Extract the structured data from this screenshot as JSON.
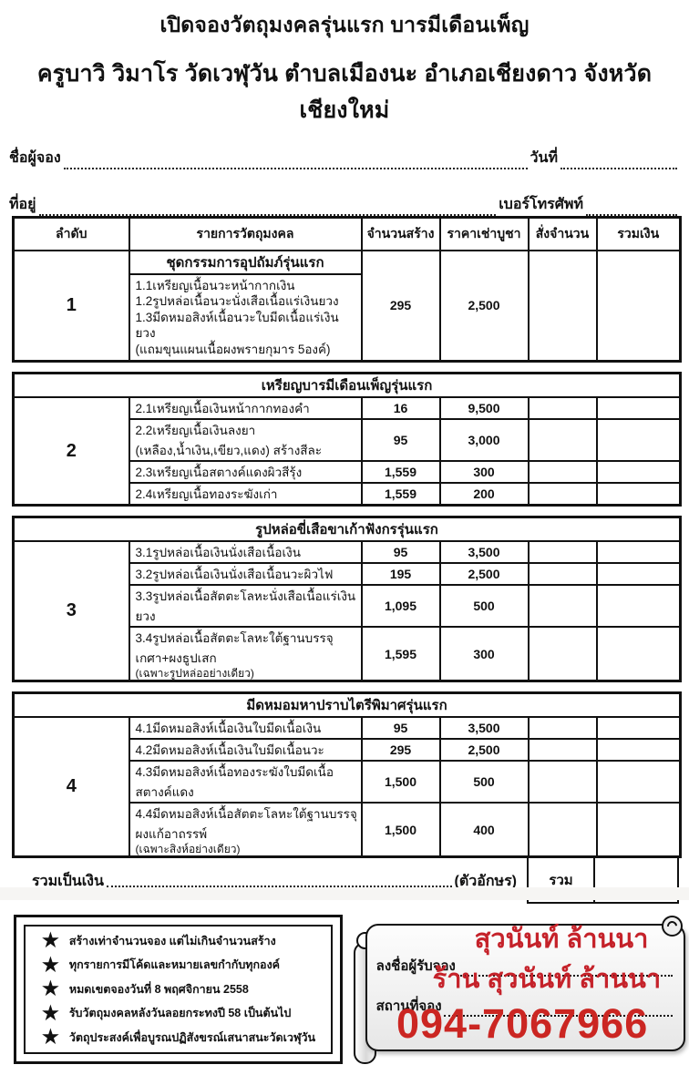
{
  "page": {
    "title": "เปิดจองวัตถุมงคลรุ่นแรก บารมีเดือนเพ็ญ",
    "subtitle": "ครูบาวิ วิมาโร วัดเวฬุวัน ตำบลเมืองนะ อำเภอเชียงดาว จังหวัดเชียงใหม่"
  },
  "form_fields": {
    "name_label": "ชื่อผู้จอง",
    "name_value": "",
    "date_label": "วันที่",
    "date_value": "",
    "address_label": "ที่อยู่",
    "address_value": "",
    "phone_label": "เบอร์โทรศัพท์",
    "phone_value": ""
  },
  "order_table": {
    "headers": {
      "no": "ลำดับ",
      "item": "รายการวัตถุมงคล",
      "qty_made": "จำนวนสร้าง",
      "price": "ราคาเช่าบูชา",
      "order_qty": "สั่งจำนวน",
      "total": "รวมเงิน"
    },
    "sections": [
      {
        "no": "1",
        "title": "ชุดกรรมการอุปถัมภ์รุ่นแรก",
        "lines": [
          "1.1เหรียญเนื้อนวะหน้ากากเงิน",
          "1.2รูปหล่อเนื้อนวะนั่งเสือเนื้อแร่เงินยวง",
          "1.3มีดหมอสิงห์เนื้อนวะใบมีดเนื้อแร่เงินยวง",
          "(แถมขุนแผนเนื้อผงพรายกุมาร 5องค์)"
        ],
        "qty_made": "295",
        "price": "2,500",
        "order_qty": "",
        "total": ""
      },
      {
        "no": "2",
        "title": "เหรียญบารมีเดือนเพ็ญรุ่นแรก",
        "rows": [
          {
            "desc": "2.1เหรียญเนื้อเงินหน้ากากทองคำ",
            "qty_made": "16",
            "price": "9,500",
            "order_qty": "",
            "total": ""
          },
          {
            "desc": "2.2เหรียญเนื้อเงินลงยา (เหลือง,น้ำเงิน,เขียว,แดง)  สร้างสีละ",
            "qty_made": "95",
            "price": "3,000",
            "order_qty": "",
            "total": ""
          },
          {
            "desc": "2.3เหรียญเนื้อสตางค์แดงผิวสีรุ้ง",
            "qty_made": "1,559",
            "price": "300",
            "order_qty": "",
            "total": ""
          },
          {
            "desc": "2.4เหรียญเนื้อทองระฆังเก่า",
            "qty_made": "1,559",
            "price": "200",
            "order_qty": "",
            "total": ""
          }
        ]
      },
      {
        "no": "3",
        "title": "รูปหล่อขี่เสือขาเก้าฟังกรรุ่นแรก",
        "rows": [
          {
            "desc": "3.1รูปหล่อเนื้อเงินนั่งเสือเนื้อเงิน",
            "qty_made": "95",
            "price": "3,500",
            "order_qty": "",
            "total": ""
          },
          {
            "desc": "3.2รูปหล่อเนื้อเงินนั่งเสือเนื้อนวะผิวไฟ",
            "qty_made": "195",
            "price": "2,500",
            "order_qty": "",
            "total": ""
          },
          {
            "desc": "3.3รูปหล่อเนื้อสัตตะโลหะนั่งเสือเนื้อแร่เงินยวง",
            "qty_made": "1,095",
            "price": "500",
            "order_qty": "",
            "total": ""
          },
          {
            "desc": "3.4รูปหล่อเนื้อสัตตะโลหะใต้ฐานบรรจุเกศา+ผงธูปเสก",
            "desc2": "(เฉพาะรูปหล่ออย่างเดียว)",
            "qty_made": "1,595",
            "price": "300",
            "order_qty": "",
            "total": ""
          }
        ]
      },
      {
        "no": "4",
        "title": "มีดหมอมหาปราบไตรีพิมาศรุ่นแรก",
        "rows": [
          {
            "desc": "4.1มีดหมอสิงห์เนื้อเงินใบมีดเนื้อเงิน",
            "qty_made": "95",
            "price": "3,500",
            "order_qty": "",
            "total": ""
          },
          {
            "desc": "4.2มีดหมอสิงห์เนื้อเงินใบมีดเนื้อนวะ",
            "qty_made": "295",
            "price": "2,500",
            "order_qty": "",
            "total": ""
          },
          {
            "desc": "4.3มีดหมอสิงห์เนื้อทองระฆังใบมีดเนื้อสตางค์แดง",
            "qty_made": "1,500",
            "price": "500",
            "order_qty": "",
            "total": ""
          },
          {
            "desc": "4.4มีดหมอสิงห์เนื้อสัตตะโลหะใต้ฐานบรรจุผงแก้อาถรรพ์",
            "desc2": "(เฉพาะสิงห์อย่างเดียว)",
            "qty_made": "1,500",
            "price": "400",
            "order_qty": "",
            "total": ""
          }
        ]
      }
    ]
  },
  "total_row": {
    "label": "รวมเป็นเงิน",
    "amount_text_value": "",
    "suffix": "(ตัวอักษร)",
    "sum_cell_label": "รวม",
    "sum_value": ""
  },
  "notes": {
    "bullet_icon": "star-icon",
    "items": [
      "สร้างเท่าจำนวนจอง แต่ไม่เกินจำนวนสร้าง",
      "ทุกรายการมีโค้ดและหมายเลขกำกับทุกองค์",
      "หมดเขตจองวันที่ 8 พฤศจิกายน 2558",
      "รับวัตถุมงคลหลังวันลอยกระทงปี 58 เป็นต้นไป",
      "วัตถุประสงค์เพื่อบูรณปฏิสังขรณ์เสนาสนะวัดเวฬุวัน"
    ]
  },
  "booking_stamp": {
    "receiver_label": "ลงชื่อผู้รับจอง",
    "receiver_value": "สุวนันท์ ล้านนา",
    "location_label": "สถานที่จอง",
    "location_value": "ร้าน สุวนันท์ ล้านนา",
    "phone": "094-7067966",
    "accent_color": "#c5222a"
  }
}
